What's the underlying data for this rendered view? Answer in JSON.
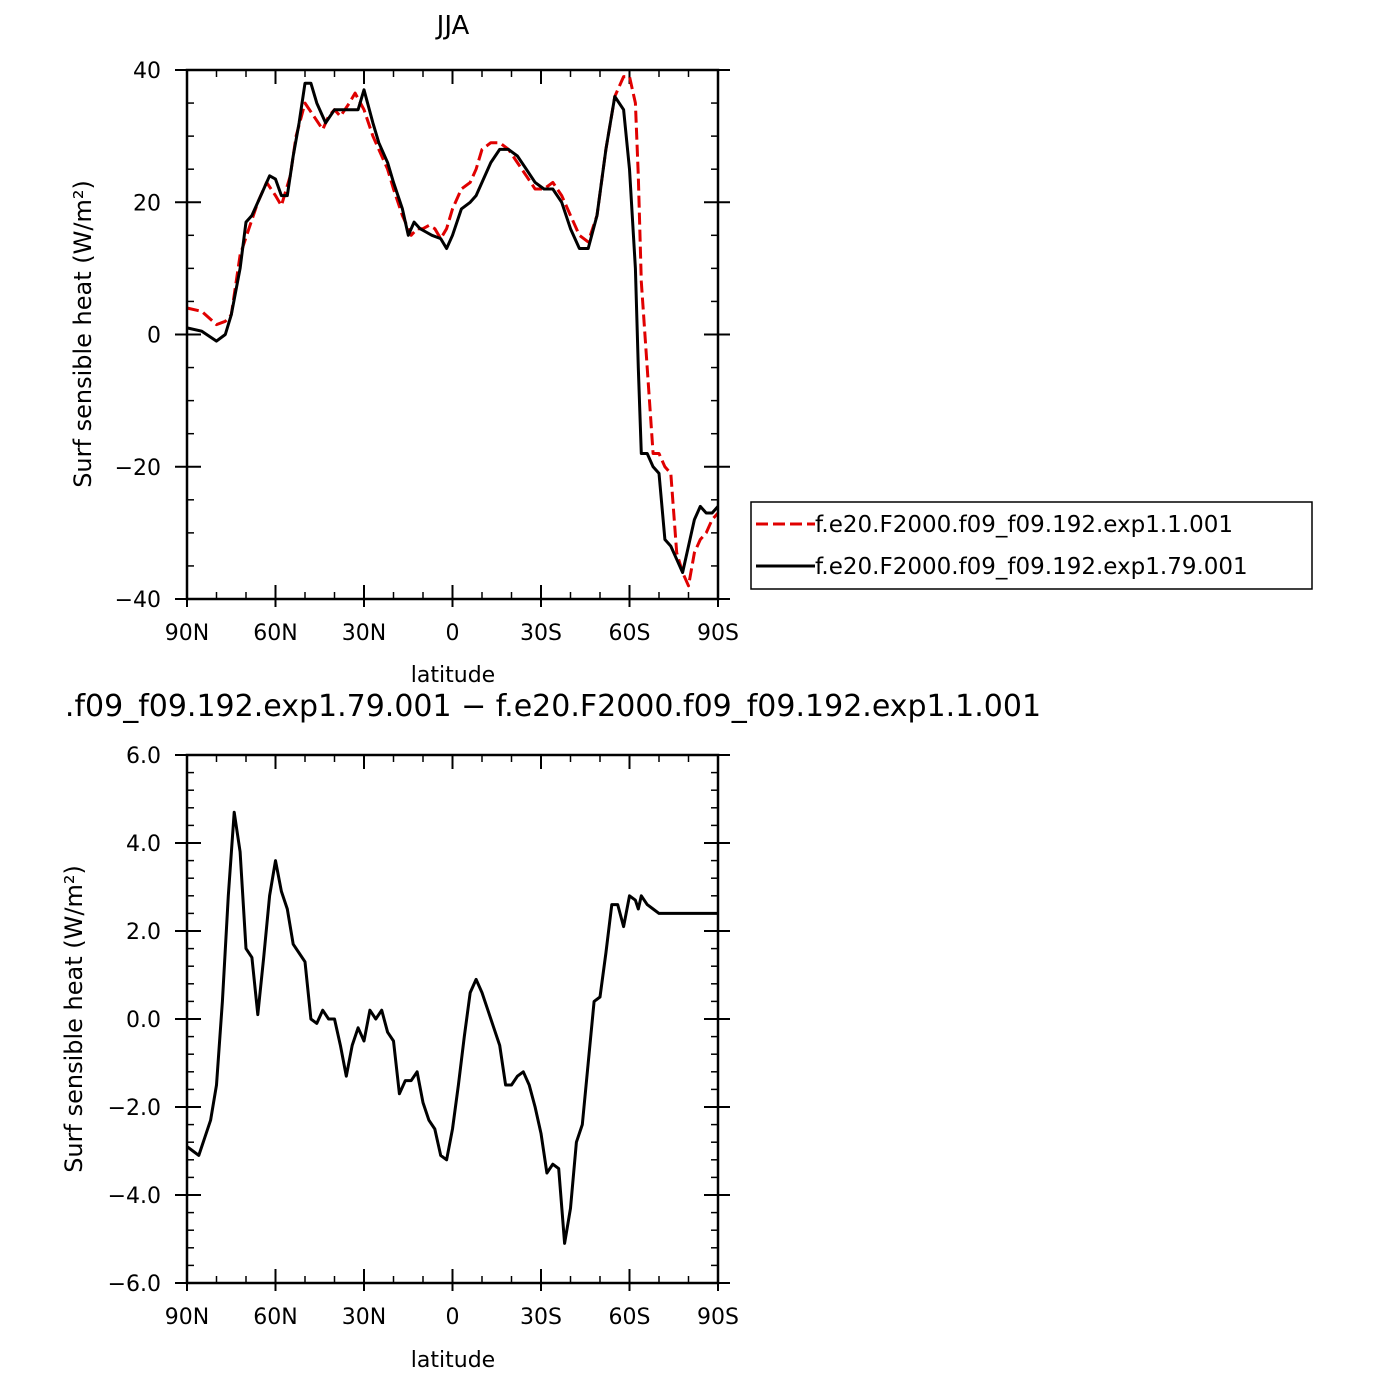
{
  "chart_data": [
    {
      "type": "line",
      "title": "JJA",
      "xlabel": "latitude",
      "ylabel": "Surf sensible heat (W/m²)",
      "xlim": [
        -90,
        90
      ],
      "ylim": [
        -40,
        40
      ],
      "xticks": [
        -90,
        -60,
        -30,
        0,
        30,
        60,
        90
      ],
      "xtick_labels": [
        "90N",
        "60N",
        "30N",
        "0",
        "30S",
        "60S",
        "90S"
      ],
      "yticks": [
        -40,
        -20,
        0,
        20,
        40
      ],
      "ytick_labels": [
        "−40",
        "−20",
        "0",
        "20",
        "40"
      ],
      "legend_position": "right",
      "series": [
        {
          "name": "f.e20.F2000.f09_f09.192.exp1.1.001",
          "color": "#e00000",
          "dash": "dashed",
          "x": [
            -90,
            -85,
            -80,
            -77,
            -75,
            -72,
            -69,
            -66,
            -63,
            -60,
            -58,
            -55,
            -53,
            -50,
            -47,
            -44,
            -42,
            -40,
            -38,
            -35,
            -33,
            -30,
            -27,
            -25,
            -22,
            -20,
            -17,
            -14,
            -12,
            -10,
            -8,
            -6,
            -4,
            -2,
            0,
            3,
            6,
            8,
            10,
            13,
            16,
            19,
            22,
            25,
            28,
            31,
            34,
            37,
            40,
            43,
            46,
            49,
            52,
            55,
            58,
            60,
            62,
            63,
            64,
            66,
            68,
            70,
            72,
            74,
            76,
            78,
            80,
            82,
            84,
            86,
            88,
            90
          ],
          "y": [
            4,
            3.5,
            1.5,
            2,
            3,
            12,
            16,
            20,
            23,
            21,
            19.5,
            24,
            30,
            35,
            33,
            31,
            33,
            34,
            33,
            35,
            36.5,
            34,
            30,
            28,
            25,
            22,
            18,
            15,
            16,
            16,
            16.5,
            16,
            14.5,
            16,
            19,
            22,
            23,
            25,
            28,
            29,
            29,
            28,
            26,
            24,
            22,
            22,
            23,
            21,
            18,
            15,
            14,
            18,
            28,
            36,
            39,
            39,
            35,
            24,
            8,
            -5,
            -18,
            -18,
            -20,
            -21,
            -33,
            -36,
            -38,
            -33,
            -31,
            -30,
            -28,
            -27
          ]
        },
        {
          "name": "f.e20.F2000.f09_f09.192.exp1.79.001",
          "color": "#000000",
          "dash": "solid",
          "x": [
            -90,
            -85,
            -80,
            -77,
            -75,
            -72,
            -70,
            -68,
            -65,
            -62,
            -60,
            -58,
            -56,
            -54,
            -52,
            -50,
            -48,
            -46,
            -43,
            -40,
            -38,
            -35,
            -32,
            -30,
            -27,
            -25,
            -22,
            -20,
            -17,
            -15,
            -13,
            -11,
            -9,
            -7,
            -4,
            -2,
            0,
            3,
            6,
            8,
            10,
            13,
            16,
            19,
            22,
            25,
            28,
            31,
            34,
            37,
            40,
            43,
            46,
            49,
            52,
            55,
            58,
            60,
            62,
            63,
            64,
            66,
            68,
            70,
            72,
            74,
            76,
            78,
            80,
            82,
            84,
            86,
            88,
            90
          ],
          "y": [
            1,
            0.5,
            -1,
            0,
            3,
            10,
            17,
            18,
            21,
            24,
            23.5,
            21,
            21,
            27,
            32,
            38,
            38,
            35,
            32,
            34,
            34,
            34,
            34,
            37,
            32,
            29,
            26,
            23,
            19,
            15,
            17,
            16,
            15.5,
            15,
            14.5,
            13,
            15,
            19,
            20,
            21,
            23,
            26,
            28,
            28,
            27,
            25,
            23,
            22,
            22,
            20,
            16,
            13,
            13,
            18,
            28,
            36,
            34,
            25,
            10,
            -5,
            -18,
            -18,
            -20,
            -21,
            -31,
            -32,
            -34,
            -36,
            -32,
            -28,
            -26,
            -27,
            -27,
            -26
          ]
        }
      ]
    },
    {
      "type": "line",
      "title": ".f09_f09.192.exp1.79.001 − f.e20.F2000.f09_f09.192.exp1.1.001",
      "xlabel": "latitude",
      "ylabel": "Surf sensible heat (W/m²)",
      "xlim": [
        -90,
        90
      ],
      "ylim": [
        -6,
        6
      ],
      "xticks": [
        -90,
        -60,
        -30,
        0,
        30,
        60,
        90
      ],
      "xtick_labels": [
        "90N",
        "60N",
        "30N",
        "0",
        "30S",
        "60S",
        "90S"
      ],
      "yticks": [
        -6,
        -4,
        -2,
        0,
        2,
        4,
        6
      ],
      "ytick_labels": [
        "−6.0",
        "−4.0",
        "−2.0",
        "0.0",
        "2.0",
        "4.0",
        "6.0"
      ],
      "series": [
        {
          "color": "#000000",
          "dash": "solid",
          "x": [
            -90,
            -88,
            -86,
            -84,
            -82,
            -80,
            -78,
            -76,
            -74,
            -72,
            -70,
            -68,
            -66,
            -64,
            -62,
            -60,
            -58,
            -56,
            -54,
            -52,
            -50,
            -48,
            -46,
            -44,
            -42,
            -40,
            -38,
            -36,
            -34,
            -32,
            -30,
            -28,
            -26,
            -24,
            -22,
            -20,
            -18,
            -16,
            -14,
            -12,
            -10,
            -8,
            -6,
            -4,
            -2,
            0,
            2,
            4,
            6,
            8,
            10,
            12,
            14,
            16,
            18,
            20,
            22,
            24,
            26,
            28,
            30,
            32,
            34,
            36,
            38,
            40,
            42,
            44,
            46,
            48,
            50,
            52,
            54,
            56,
            58,
            60,
            62,
            63,
            64,
            66,
            68,
            70,
            72,
            74,
            76,
            78,
            80,
            82,
            84,
            86,
            88,
            90
          ],
          "y": [
            -2.9,
            -3,
            -3.1,
            -2.7,
            -2.3,
            -1.5,
            0.4,
            2.8,
            4.7,
            3.8,
            1.6,
            1.4,
            0.1,
            1.4,
            2.8,
            3.6,
            2.9,
            2.5,
            1.7,
            1.5,
            1.3,
            0,
            -0.1,
            0.2,
            0,
            0,
            -0.6,
            -1.3,
            -0.6,
            -0.2,
            -0.5,
            0.2,
            0,
            0.2,
            -0.3,
            -0.5,
            -1.7,
            -1.4,
            -1.4,
            -1.2,
            -1.9,
            -2.3,
            -2.5,
            -3.1,
            -3.2,
            -2.5,
            -1.5,
            -0.4,
            0.6,
            0.9,
            0.6,
            0.2,
            -0.2,
            -0.6,
            -1.5,
            -1.5,
            -1.3,
            -1.2,
            -1.5,
            -2,
            -2.6,
            -3.5,
            -3.3,
            -3.4,
            -5.1,
            -4.3,
            -2.8,
            -2.4,
            -1,
            0.4,
            0.5,
            1.5,
            2.6,
            2.6,
            2.1,
            2.8,
            2.7,
            2.5,
            2.8,
            2.6,
            2.5,
            2.4,
            2.4,
            2.4,
            2.4,
            2.4,
            2.4,
            2.4,
            2.4,
            2.4,
            2.4,
            2.4
          ]
        }
      ]
    }
  ]
}
